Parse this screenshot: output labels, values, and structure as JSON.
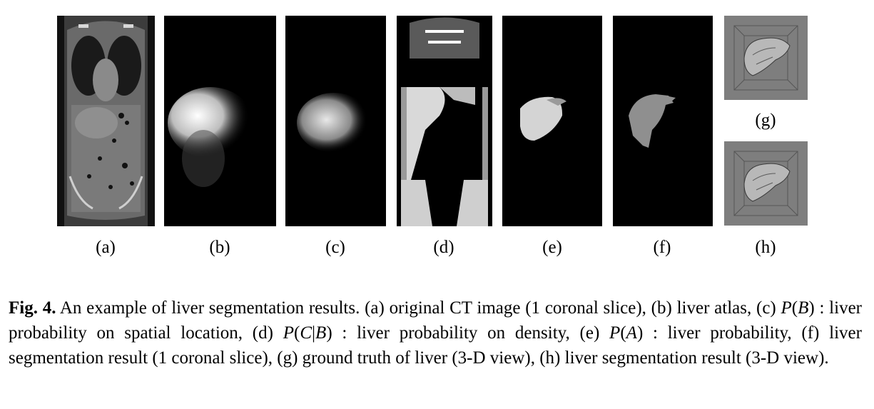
{
  "figure": {
    "panels": [
      {
        "id": "a",
        "label": "(a)"
      },
      {
        "id": "b",
        "label": "(b)"
      },
      {
        "id": "c",
        "label": "(c)"
      },
      {
        "id": "d",
        "label": "(d)"
      },
      {
        "id": "e",
        "label": "(e)"
      },
      {
        "id": "f",
        "label": "(f)"
      },
      {
        "id": "g",
        "label": "(g)"
      },
      {
        "id": "h",
        "label": "(h)"
      }
    ],
    "caption": {
      "fig_label": "Fig. 4.",
      "t0": " An example of liver segmentation results. (a) original CT image (1 coronal slice), (b) liver atlas, (c) ",
      "m1": "P",
      "t1": "(",
      "m2": "B",
      "t2": ") : liver probability on spatial location, (d) ",
      "m3": "P",
      "t3": "(",
      "m4": "C",
      "t4": "|",
      "m5": "B",
      "t5": ") : liver probability on density, (e) ",
      "m6": "P",
      "t6": "(",
      "m7": "A",
      "t7": ") : liver probability, (f) liver segmentation result (1 coronal slice), (g) ground truth of liver (3-D view), (h) liver segmentation result (3-D view)."
    }
  }
}
